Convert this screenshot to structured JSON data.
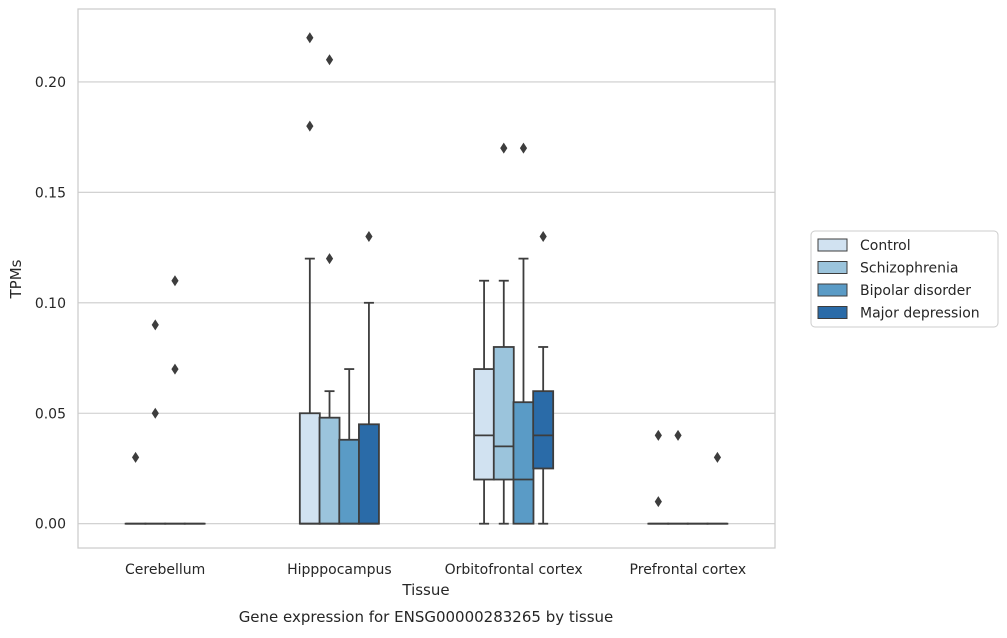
{
  "chart_data": {
    "type": "box",
    "title": "",
    "caption": "Gene expression for ENSG00000283265 by tissue",
    "xlabel": "Tissue",
    "ylabel": "TPMs",
    "ylim": [
      -0.011,
      0.233
    ],
    "yticks": [
      0.0,
      0.05,
      0.1,
      0.15,
      0.2
    ],
    "ytick_labels": [
      "0.00",
      "0.05",
      "0.10",
      "0.15",
      "0.20"
    ],
    "grid": "horizontal",
    "legend_position": "right",
    "categories": [
      "Cerebellum",
      "Hipppocampus",
      "Orbitofrontal cortex",
      "Prefrontal cortex"
    ],
    "series": [
      {
        "name": "Control",
        "color": "#d1e2f1",
        "boxes": [
          {
            "whislo": 0,
            "q1": 0,
            "med": 0,
            "q3": 0,
            "whishi": 0,
            "fliers": [
              0.03
            ]
          },
          {
            "whislo": 0,
            "q1": 0,
            "med": 0,
            "q3": 0.05,
            "whishi": 0.12,
            "fliers": [
              0.18,
              0.22
            ]
          },
          {
            "whislo": 0,
            "q1": 0.02,
            "med": 0.04,
            "q3": 0.07,
            "whishi": 0.11,
            "fliers": []
          },
          {
            "whislo": 0,
            "q1": 0,
            "med": 0,
            "q3": 0,
            "whishi": 0,
            "fliers": [
              0.01,
              0.04
            ]
          }
        ]
      },
      {
        "name": "Schizophrenia",
        "color": "#9bc4dc",
        "boxes": [
          {
            "whislo": 0,
            "q1": 0,
            "med": 0,
            "q3": 0,
            "whishi": 0,
            "fliers": [
              0.05,
              0.09
            ]
          },
          {
            "whislo": 0,
            "q1": 0,
            "med": 0,
            "q3": 0.048,
            "whishi": 0.06,
            "fliers": [
              0.12,
              0.21
            ]
          },
          {
            "whislo": 0,
            "q1": 0.02,
            "med": 0.035,
            "q3": 0.08,
            "whishi": 0.11,
            "fliers": [
              0.17
            ]
          },
          {
            "whislo": 0,
            "q1": 0,
            "med": 0,
            "q3": 0,
            "whishi": 0,
            "fliers": [
              0.04
            ]
          }
        ]
      },
      {
        "name": "Bipolar disorder",
        "color": "#5a9bc6",
        "boxes": [
          {
            "whislo": 0,
            "q1": 0,
            "med": 0,
            "q3": 0,
            "whishi": 0,
            "fliers": [
              0.07,
              0.11
            ]
          },
          {
            "whislo": 0,
            "q1": 0,
            "med": 0,
            "q3": 0.038,
            "whishi": 0.07,
            "fliers": []
          },
          {
            "whislo": 0,
            "q1": 0,
            "med": 0.02,
            "q3": 0.055,
            "whishi": 0.12,
            "fliers": [
              0.17
            ]
          },
          {
            "whislo": 0,
            "q1": 0,
            "med": 0,
            "q3": 0,
            "whishi": 0,
            "fliers": []
          }
        ]
      },
      {
        "name": "Major depression",
        "color": "#2a6ba8",
        "boxes": [
          {
            "whislo": 0,
            "q1": 0,
            "med": 0,
            "q3": 0,
            "whishi": 0,
            "fliers": []
          },
          {
            "whislo": 0,
            "q1": 0,
            "med": 0,
            "q3": 0.045,
            "whishi": 0.1,
            "fliers": [
              0.13
            ]
          },
          {
            "whislo": 0,
            "q1": 0.025,
            "med": 0.04,
            "q3": 0.06,
            "whishi": 0.08,
            "fliers": [
              0.13
            ]
          },
          {
            "whislo": 0,
            "q1": 0,
            "med": 0,
            "q3": 0,
            "whishi": 0,
            "fliers": [
              0.03
            ]
          }
        ]
      }
    ]
  }
}
